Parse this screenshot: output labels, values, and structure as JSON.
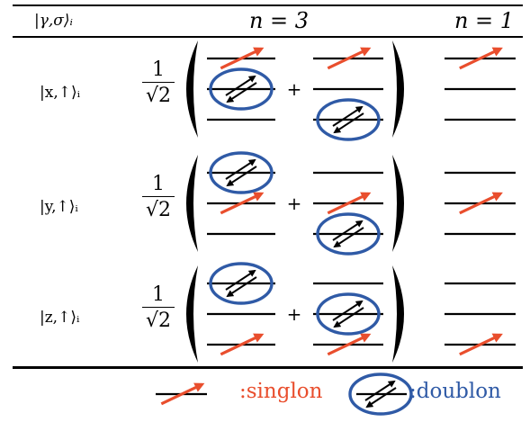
{
  "header": {
    "state_label": "|γ,σ⟩ᵢ",
    "n3_label": "n = 3",
    "n1_label": "n = 1"
  },
  "rows": [
    {
      "state": "|x,↑⟩ᵢ",
      "frac_num": "1",
      "frac_den": "√2",
      "plus": "+",
      "term1": {
        "singlon_level": 0,
        "doublon_level": 1
      },
      "term2": {
        "singlon_level": 0,
        "doublon_level": 2
      },
      "n1_singlon_level": 0
    },
    {
      "state": "|y,↑⟩ᵢ",
      "frac_num": "1",
      "frac_den": "√2",
      "plus": "+",
      "term1": {
        "singlon_level": 1,
        "doublon_level": 0
      },
      "term2": {
        "singlon_level": 1,
        "doublon_level": 2
      },
      "n1_singlon_level": 1
    },
    {
      "state": "|z,↑⟩ᵢ",
      "frac_num": "1",
      "frac_den": "√2",
      "plus": "+",
      "term1": {
        "singlon_level": 2,
        "doublon_level": 0
      },
      "term2": {
        "singlon_level": 2,
        "doublon_level": 1
      },
      "n1_singlon_level": 2
    }
  ],
  "legend": {
    "singlon_label": ":singlon",
    "doublon_label": ":doublon"
  },
  "colors": {
    "singlon": "#e94e2d",
    "doublon": "#2f5aa6",
    "line": "#000000"
  }
}
